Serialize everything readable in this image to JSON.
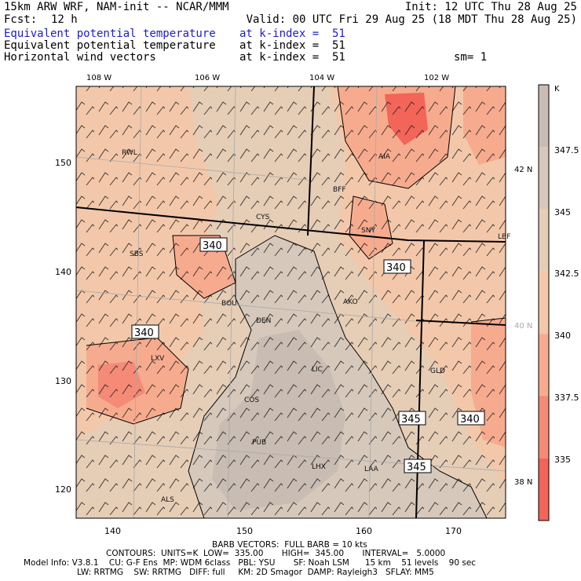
{
  "header": {
    "model": "15km ARW WRF, NAM-init -- NCAR/MMM",
    "init": "Init: 12 UTC Thu 28 Aug 25",
    "fcst_label": "Fcst:",
    "fcst_value": "12 h",
    "valid": "Valid: 00 UTC Fri 29 Aug 25 (18 MDT Thu 28 Aug 25)",
    "fields": [
      {
        "name": "Equivalent potential temperature",
        "level": "at k-index =  51",
        "extra": ""
      },
      {
        "name": "Equivalent potential temperature",
        "level": "at k-index =  51",
        "extra": ""
      },
      {
        "name": "Horizontal wind vectors",
        "level": "at k-index =  51",
        "extra": "sm= 1"
      }
    ]
  },
  "map": {
    "lon_labels": [
      "108 W",
      "106 W",
      "104 W",
      "102 W"
    ],
    "lat_labels": [
      "42 N",
      "40 N",
      "38 N"
    ],
    "grid_x_labels": [
      "140",
      "150",
      "160",
      "170"
    ],
    "grid_y_labels": [
      "150",
      "140",
      "130",
      "120"
    ],
    "stations": [
      "RWL",
      "BFF",
      "AIA",
      "CYS",
      "SNY",
      "LBF",
      "SBS",
      "BOU",
      "DEN",
      "AKO",
      "LXV",
      "LIC",
      "GLD",
      "COS",
      "PUB",
      "LHX",
      "LAA",
      "ALS"
    ],
    "contour_labels": [
      "340",
      "340",
      "340",
      "345",
      "340",
      "345"
    ]
  },
  "colorbar": {
    "unit": "K",
    "ticks": [
      "347.5",
      "345",
      "342.5",
      "340",
      "337.5",
      "335"
    ],
    "colors": [
      "#c9bcb3",
      "#d6c8bb",
      "#e6cdb6",
      "#f3c8aa",
      "#f7ab8e",
      "#f58a76",
      "#f26558"
    ]
  },
  "footer": {
    "barb": "BARB VECTORS:  FULL BARB = 10 kts",
    "contours": "CONTOURS:  UNITS=K  LOW=  335.00       HIGH=  345.00       INTERVAL=   5.0000",
    "model_info": "Model Info: V3.8.1    CU: G-F Ens  MP: WDM 6class   PBL: YSU       SF: Noah LSM      15 km    51 levels    90 sec",
    "physics": "LW: RRTMG    SW: RRTMG   DIFF: full     KM: 2D Smagor  DAMP: Rayleigh3   SFLAY: MM5"
  }
}
